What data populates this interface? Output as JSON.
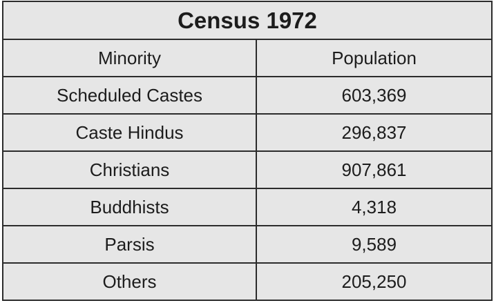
{
  "table": {
    "title": "Census 1972",
    "columns": [
      "Minority",
      "Population"
    ],
    "rows": [
      {
        "minority": "Scheduled Castes",
        "population": "603,369"
      },
      {
        "minority": "Caste Hindus",
        "population": "296,837"
      },
      {
        "minority": "Christians",
        "population": "907,861"
      },
      {
        "minority": "Buddhists",
        "population": "4,318"
      },
      {
        "minority": "Parsis",
        "population": "9,589"
      },
      {
        "minority": "Others",
        "population": "205,250"
      }
    ]
  }
}
